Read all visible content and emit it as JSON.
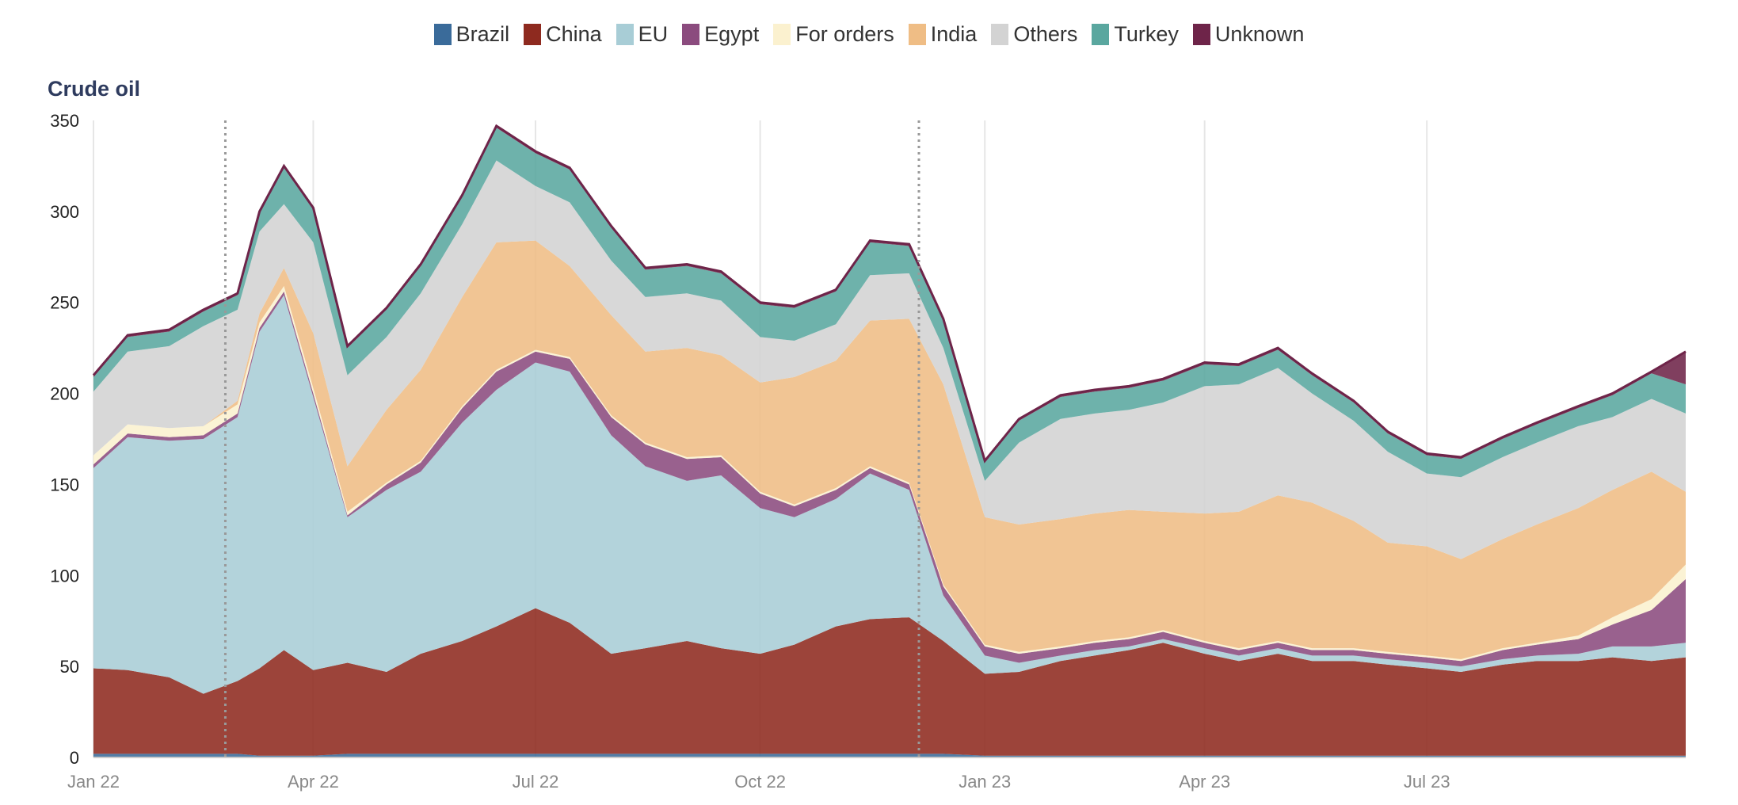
{
  "legend": [
    {
      "name": "Brazil",
      "color": "#3a6b9a"
    },
    {
      "name": "China",
      "color": "#8e2a1f"
    },
    {
      "name": "EU",
      "color": "#a8cdd6"
    },
    {
      "name": "Egypt",
      "color": "#8b4b7e"
    },
    {
      "name": "For orders",
      "color": "#fbf1cf"
    },
    {
      "name": "India",
      "color": "#efbd85"
    },
    {
      "name": "Others",
      "color": "#d3d3d3"
    },
    {
      "name": "Turkey",
      "color": "#5aa79f"
    },
    {
      "name": "Unknown",
      "color": "#6e2449"
    }
  ],
  "chart_data": {
    "type": "area",
    "stacked": true,
    "title": "Crude oil",
    "xlabel": "",
    "ylabel": "",
    "ylim": [
      0,
      350
    ],
    "yticks": [
      0,
      50,
      100,
      150,
      200,
      250,
      300,
      350
    ],
    "xtick_labels": [
      "Jan 22",
      "Apr 22",
      "Jul 22",
      "Oct 22",
      "Jan 23",
      "Apr 23",
      "Jul 23"
    ],
    "xtick_dates": [
      "2022-01-01",
      "2022-04-01",
      "2022-07-01",
      "2022-10-01",
      "2023-01-01",
      "2023-04-01",
      "2023-07-01"
    ],
    "xrange": [
      "2022-01-01",
      "2023-10-15"
    ],
    "vlines": [
      "2022-02-24",
      "2022-12-05"
    ],
    "grid": "vertical",
    "legend_position": "top",
    "x": [
      "2022-01-01",
      "2022-01-15",
      "2022-02-01",
      "2022-02-15",
      "2022-03-01",
      "2022-03-10",
      "2022-03-20",
      "2022-04-01",
      "2022-04-15",
      "2022-05-01",
      "2022-05-15",
      "2022-06-01",
      "2022-06-15",
      "2022-07-01",
      "2022-07-15",
      "2022-08-01",
      "2022-08-15",
      "2022-09-01",
      "2022-09-15",
      "2022-10-01",
      "2022-10-15",
      "2022-11-01",
      "2022-11-15",
      "2022-12-01",
      "2022-12-15",
      "2023-01-01",
      "2023-01-15",
      "2023-02-01",
      "2023-02-15",
      "2023-03-01",
      "2023-03-15",
      "2023-04-01",
      "2023-04-15",
      "2023-05-01",
      "2023-05-15",
      "2023-06-01",
      "2023-06-15",
      "2023-07-01",
      "2023-07-15",
      "2023-08-01",
      "2023-08-15",
      "2023-09-01",
      "2023-09-15",
      "2023-10-01",
      "2023-10-15"
    ],
    "series": [
      {
        "name": "Brazil",
        "color": "#3a6b9a",
        "values": [
          2,
          2,
          2,
          2,
          2,
          1,
          1,
          1,
          2,
          2,
          2,
          2,
          2,
          2,
          2,
          2,
          2,
          2,
          2,
          2,
          2,
          2,
          2,
          2,
          2,
          1,
          1,
          1,
          1,
          1,
          1,
          1,
          1,
          1,
          1,
          1,
          1,
          1,
          1,
          1,
          1,
          1,
          1,
          1,
          1
        ]
      },
      {
        "name": "China",
        "color": "#8e2a1f",
        "values": [
          47,
          46,
          42,
          33,
          40,
          48,
          58,
          47,
          50,
          45,
          55,
          62,
          70,
          80,
          72,
          55,
          58,
          62,
          58,
          55,
          60,
          70,
          74,
          75,
          62,
          45,
          46,
          52,
          55,
          58,
          62,
          56,
          52,
          56,
          52,
          52,
          50,
          48,
          46,
          50,
          52,
          52,
          54,
          52,
          54
        ]
      },
      {
        "name": "EU",
        "color": "#a8cdd6",
        "values": [
          110,
          128,
          130,
          140,
          145,
          185,
          195,
          150,
          80,
          100,
          100,
          120,
          130,
          135,
          138,
          120,
          100,
          88,
          95,
          80,
          70,
          70,
          80,
          70,
          25,
          10,
          5,
          3,
          3,
          2,
          2,
          3,
          3,
          3,
          3,
          3,
          3,
          3,
          3,
          3,
          3,
          4,
          6,
          8,
          8
        ]
      },
      {
        "name": "Egypt",
        "color": "#8b4b7e",
        "values": [
          2,
          2,
          2,
          2,
          2,
          2,
          2,
          2,
          1,
          3,
          5,
          8,
          10,
          6,
          7,
          10,
          12,
          12,
          10,
          8,
          6,
          5,
          3,
          3,
          5,
          5,
          5,
          4,
          4,
          4,
          4,
          3,
          3,
          3,
          3,
          3,
          3,
          3,
          3,
          5,
          6,
          8,
          12,
          20,
          35
        ]
      },
      {
        "name": "For orders",
        "color": "#fbf1cf",
        "values": [
          5,
          5,
          5,
          5,
          5,
          3,
          3,
          3,
          2,
          1,
          1,
          1,
          1,
          1,
          1,
          1,
          1,
          1,
          1,
          1,
          1,
          1,
          1,
          1,
          1,
          1,
          1,
          1,
          1,
          1,
          1,
          1,
          1,
          1,
          1,
          1,
          1,
          1,
          1,
          1,
          1,
          2,
          4,
          6,
          8
        ]
      },
      {
        "name": "India",
        "color": "#efbd85",
        "values": [
          0,
          0,
          0,
          0,
          2,
          5,
          10,
          30,
          25,
          40,
          50,
          60,
          70,
          60,
          50,
          55,
          50,
          60,
          55,
          60,
          70,
          70,
          80,
          90,
          110,
          70,
          70,
          70,
          70,
          70,
          65,
          70,
          75,
          80,
          80,
          70,
          60,
          60,
          55,
          60,
          65,
          70,
          70,
          70,
          40
        ]
      },
      {
        "name": "Others",
        "color": "#d3d3d3",
        "values": [
          35,
          40,
          45,
          55,
          50,
          45,
          35,
          50,
          50,
          40,
          42,
          40,
          45,
          30,
          35,
          30,
          30,
          30,
          30,
          25,
          20,
          20,
          25,
          25,
          20,
          20,
          45,
          55,
          55,
          55,
          60,
          70,
          70,
          70,
          60,
          55,
          50,
          40,
          45,
          45,
          45,
          45,
          40,
          40,
          43
        ]
      },
      {
        "name": "Turkey",
        "color": "#5aa79f",
        "values": [
          8,
          8,
          8,
          8,
          8,
          10,
          20,
          18,
          15,
          15,
          15,
          15,
          18,
          18,
          18,
          18,
          15,
          15,
          15,
          18,
          18,
          18,
          18,
          15,
          15,
          10,
          12,
          12,
          12,
          12,
          12,
          12,
          10,
          10,
          10,
          10,
          10,
          10,
          10,
          10,
          10,
          10,
          12,
          14,
          16
        ]
      },
      {
        "name": "Unknown",
        "color": "#6e2449",
        "values": [
          1,
          1,
          1,
          1,
          1,
          1,
          1,
          1,
          1,
          1,
          1,
          1,
          1,
          1,
          1,
          1,
          1,
          1,
          1,
          1,
          1,
          1,
          1,
          1,
          1,
          1,
          1,
          1,
          1,
          1,
          1,
          1,
          1,
          1,
          1,
          1,
          1,
          1,
          1,
          1,
          1,
          1,
          1,
          1,
          18
        ]
      }
    ]
  }
}
